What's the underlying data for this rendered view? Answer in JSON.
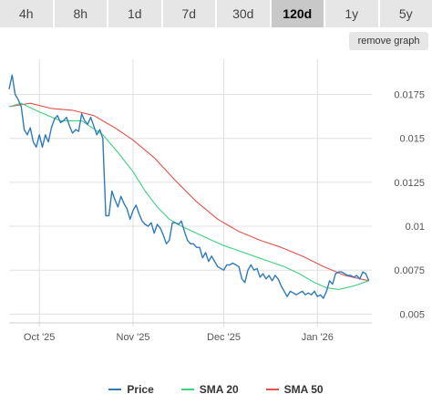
{
  "range_tabs": {
    "items": [
      {
        "label": "4h",
        "active": false
      },
      {
        "label": "8h",
        "active": false
      },
      {
        "label": "1d",
        "active": false
      },
      {
        "label": "7d",
        "active": false
      },
      {
        "label": "30d",
        "active": false
      },
      {
        "label": "120d",
        "active": true
      },
      {
        "label": "1y",
        "active": false
      },
      {
        "label": "5y",
        "active": false
      }
    ]
  },
  "remove_graph_label": "remove graph",
  "colors": {
    "price": "#2f7ab8",
    "sma20": "#3fcf7f",
    "sma50": "#e0524a",
    "grid": "#e0e0e0",
    "axis": "#555555"
  },
  "chart_data": {
    "type": "line",
    "x_start": "2025-09-21",
    "x_end": "2026-01-19",
    "ylim": [
      0.0045,
      0.0195
    ],
    "yticks": [
      {
        "value": 0.005,
        "label": "0.005"
      },
      {
        "value": 0.0075,
        "label": "0.0075"
      },
      {
        "value": 0.01,
        "label": "0.01"
      },
      {
        "value": 0.0125,
        "label": "0.0125"
      },
      {
        "value": 0.015,
        "label": "0.015"
      },
      {
        "value": 0.0175,
        "label": "0.0175"
      }
    ],
    "xticks": [
      {
        "date": "2025-10-01",
        "label": "Oct '25"
      },
      {
        "date": "2025-11-01",
        "label": "Nov '25"
      },
      {
        "date": "2025-12-01",
        "label": "Dec '25"
      },
      {
        "date": "2026-01-01",
        "label": "Jan '26"
      }
    ],
    "grid": true,
    "legend_position": "bottom",
    "series": [
      {
        "name": "Price",
        "color": "#2f7ab8",
        "points": [
          [
            "2025-09-21",
            0.0178
          ],
          [
            "2025-09-22",
            0.0186
          ],
          [
            "2025-09-23",
            0.0175
          ],
          [
            "2025-09-24",
            0.0172
          ],
          [
            "2025-09-25",
            0.0168
          ],
          [
            "2025-09-26",
            0.0155
          ],
          [
            "2025-09-27",
            0.0152
          ],
          [
            "2025-09-28",
            0.0156
          ],
          [
            "2025-09-29",
            0.0148
          ],
          [
            "2025-09-30",
            0.0145
          ],
          [
            "2025-10-01",
            0.0152
          ],
          [
            "2025-10-02",
            0.0145
          ],
          [
            "2025-10-03",
            0.0152
          ],
          [
            "2025-10-04",
            0.0148
          ],
          [
            "2025-10-05",
            0.0156
          ],
          [
            "2025-10-06",
            0.0161
          ],
          [
            "2025-10-07",
            0.0163
          ],
          [
            "2025-10-08",
            0.0159
          ],
          [
            "2025-10-09",
            0.016
          ],
          [
            "2025-10-10",
            0.0162
          ],
          [
            "2025-10-11",
            0.0157
          ],
          [
            "2025-10-12",
            0.0153
          ],
          [
            "2025-10-13",
            0.0155
          ],
          [
            "2025-10-14",
            0.0154
          ],
          [
            "2025-10-15",
            0.0164
          ],
          [
            "2025-10-16",
            0.016
          ],
          [
            "2025-10-17",
            0.0158
          ],
          [
            "2025-10-18",
            0.0162
          ],
          [
            "2025-10-19",
            0.0157
          ],
          [
            "2025-10-20",
            0.0152
          ],
          [
            "2025-10-21",
            0.0155
          ],
          [
            "2025-10-22",
            0.015
          ],
          [
            "2025-10-23",
            0.0106
          ],
          [
            "2025-10-24",
            0.0106
          ],
          [
            "2025-10-25",
            0.012
          ],
          [
            "2025-10-26",
            0.0115
          ],
          [
            "2025-10-27",
            0.0111
          ],
          [
            "2025-10-28",
            0.0117
          ],
          [
            "2025-10-29",
            0.0113
          ],
          [
            "2025-10-30",
            0.011
          ],
          [
            "2025-10-31",
            0.0104
          ],
          [
            "2025-11-01",
            0.0109
          ],
          [
            "2025-11-02",
            0.0112
          ],
          [
            "2025-11-03",
            0.0107
          ],
          [
            "2025-11-04",
            0.0103
          ],
          [
            "2025-11-05",
            0.0101
          ],
          [
            "2025-11-06",
            0.01
          ],
          [
            "2025-11-07",
            0.0102
          ],
          [
            "2025-11-08",
            0.0096
          ],
          [
            "2025-11-09",
            0.0101
          ],
          [
            "2025-11-10",
            0.0099
          ],
          [
            "2025-11-11",
            0.0095
          ],
          [
            "2025-11-12",
            0.009
          ],
          [
            "2025-11-13",
            0.0092
          ],
          [
            "2025-11-14",
            0.0102
          ],
          [
            "2025-11-15",
            0.0102
          ],
          [
            "2025-11-16",
            0.0101
          ],
          [
            "2025-11-17",
            0.0103
          ],
          [
            "2025-11-18",
            0.0097
          ],
          [
            "2025-11-19",
            0.0092
          ],
          [
            "2025-11-20",
            0.009
          ],
          [
            "2025-11-21",
            0.009
          ],
          [
            "2025-11-22",
            0.0088
          ],
          [
            "2025-11-23",
            0.0088
          ],
          [
            "2025-11-24",
            0.0082
          ],
          [
            "2025-11-25",
            0.0085
          ],
          [
            "2025-11-26",
            0.008
          ],
          [
            "2025-11-27",
            0.0083
          ],
          [
            "2025-11-28",
            0.008
          ],
          [
            "2025-11-29",
            0.0077
          ],
          [
            "2025-11-30",
            0.0076
          ],
          [
            "2025-12-01",
            0.0075
          ],
          [
            "2025-12-02",
            0.0078
          ],
          [
            "2025-12-03",
            0.0078
          ],
          [
            "2025-12-04",
            0.0079
          ],
          [
            "2025-12-05",
            0.0078
          ],
          [
            "2025-12-06",
            0.0077
          ],
          [
            "2025-12-07",
            0.007
          ],
          [
            "2025-12-08",
            0.0068
          ],
          [
            "2025-12-09",
            0.0075
          ],
          [
            "2025-12-10",
            0.0078
          ],
          [
            "2025-12-11",
            0.0075
          ],
          [
            "2025-12-12",
            0.0076
          ],
          [
            "2025-12-13",
            0.0071
          ],
          [
            "2025-12-14",
            0.0073
          ],
          [
            "2025-12-15",
            0.007
          ],
          [
            "2025-12-16",
            0.0072
          ],
          [
            "2025-12-17",
            0.0069
          ],
          [
            "2025-12-18",
            0.0072
          ],
          [
            "2025-12-19",
            0.007
          ],
          [
            "2025-12-20",
            0.0066
          ],
          [
            "2025-12-21",
            0.0063
          ],
          [
            "2025-12-22",
            0.006
          ],
          [
            "2025-12-23",
            0.0063
          ],
          [
            "2025-12-24",
            0.0062
          ],
          [
            "2025-12-25",
            0.0061
          ],
          [
            "2025-12-26",
            0.0062
          ],
          [
            "2025-12-27",
            0.0063
          ],
          [
            "2025-12-28",
            0.0061
          ],
          [
            "2025-12-29",
            0.0062
          ],
          [
            "2025-12-30",
            0.0061
          ],
          [
            "2025-12-31",
            0.0063
          ],
          [
            "2026-01-01",
            0.006
          ],
          [
            "2026-01-02",
            0.0061
          ],
          [
            "2026-01-03",
            0.0059
          ],
          [
            "2026-01-04",
            0.0063
          ],
          [
            "2026-01-05",
            0.0069
          ],
          [
            "2026-01-06",
            0.0067
          ],
          [
            "2026-01-07",
            0.0073
          ],
          [
            "2026-01-08",
            0.0074
          ],
          [
            "2026-01-09",
            0.0074
          ],
          [
            "2026-01-10",
            0.0073
          ],
          [
            "2026-01-11",
            0.0072
          ],
          [
            "2026-01-12",
            0.0072
          ],
          [
            "2026-01-13",
            0.0071
          ],
          [
            "2026-01-14",
            0.0072
          ],
          [
            "2026-01-15",
            0.007
          ],
          [
            "2026-01-16",
            0.0074
          ],
          [
            "2026-01-17",
            0.0073
          ],
          [
            "2026-01-18",
            0.0069
          ]
        ]
      },
      {
        "name": "SMA 20",
        "color": "#3fcf7f",
        "points": [
          [
            "2025-09-21",
            0.0168
          ],
          [
            "2025-09-25",
            0.017
          ],
          [
            "2025-10-01",
            0.0165
          ],
          [
            "2025-10-08",
            0.016
          ],
          [
            "2025-10-15",
            0.016
          ],
          [
            "2025-10-22",
            0.0152
          ],
          [
            "2025-10-27",
            0.0142
          ],
          [
            "2025-11-01",
            0.0131
          ],
          [
            "2025-11-05",
            0.012
          ],
          [
            "2025-11-09",
            0.0111
          ],
          [
            "2025-11-13",
            0.0104
          ],
          [
            "2025-11-17",
            0.01
          ],
          [
            "2025-11-22",
            0.0096
          ],
          [
            "2025-11-27",
            0.0092
          ],
          [
            "2025-12-01",
            0.0089
          ],
          [
            "2025-12-06",
            0.0086
          ],
          [
            "2025-12-11",
            0.0083
          ],
          [
            "2025-12-16",
            0.008
          ],
          [
            "2025-12-21",
            0.0077
          ],
          [
            "2025-12-26",
            0.0073
          ],
          [
            "2025-12-31",
            0.0068
          ],
          [
            "2026-01-04",
            0.0065
          ],
          [
            "2026-01-08",
            0.0064
          ],
          [
            "2026-01-13",
            0.0066
          ],
          [
            "2026-01-18",
            0.0069
          ]
        ]
      },
      {
        "name": "SMA 50",
        "color": "#e0524a",
        "points": [
          [
            "2025-09-21",
            0.0168
          ],
          [
            "2025-09-28",
            0.017
          ],
          [
            "2025-10-05",
            0.0167
          ],
          [
            "2025-10-12",
            0.0166
          ],
          [
            "2025-10-19",
            0.0163
          ],
          [
            "2025-10-26",
            0.0156
          ],
          [
            "2025-11-01",
            0.0149
          ],
          [
            "2025-11-08",
            0.0139
          ],
          [
            "2025-11-15",
            0.0126
          ],
          [
            "2025-11-22",
            0.0114
          ],
          [
            "2025-11-29",
            0.0104
          ],
          [
            "2025-12-06",
            0.0097
          ],
          [
            "2025-12-13",
            0.0092
          ],
          [
            "2025-12-20",
            0.0088
          ],
          [
            "2025-12-27",
            0.0083
          ],
          [
            "2026-01-03",
            0.0077
          ],
          [
            "2026-01-10",
            0.0072
          ],
          [
            "2026-01-18",
            0.0069
          ]
        ]
      }
    ]
  }
}
